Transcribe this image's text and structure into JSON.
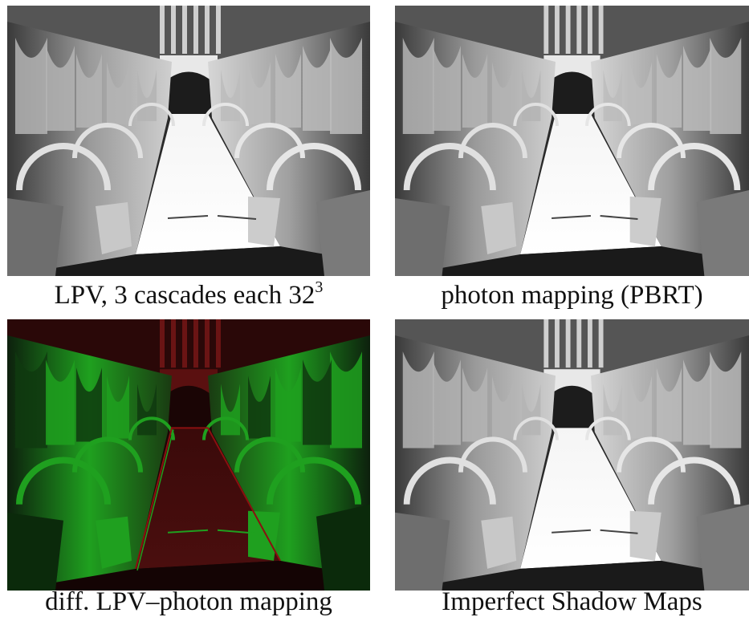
{
  "figure": {
    "panels": [
      {
        "caption_main": "LPV, 3 cascades each 32",
        "caption_sup": "3",
        "image": "sponza-render-grayscale"
      },
      {
        "caption_main": "photon mapping (PBRT)",
        "caption_sup": "",
        "image": "sponza-render-grayscale"
      },
      {
        "caption_main": "diff. LPV–photon mapping",
        "caption_sup": "",
        "image": "sponza-difference-red-green"
      },
      {
        "caption_main": "Imperfect Shadow Maps",
        "caption_sup": "",
        "image": "sponza-render-grayscale"
      }
    ],
    "colors": {
      "diff_positive": "#1fa01f",
      "diff_negative": "#8a1010",
      "background": "#ffffff"
    }
  }
}
